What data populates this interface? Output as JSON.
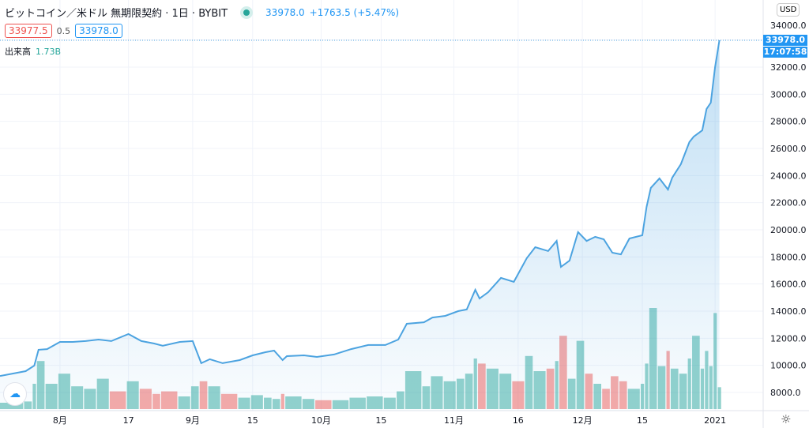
{
  "header": {
    "title": "ビットコイン／米ドル 無期限契約 · 1日 · BYBIT",
    "last": "33978.0",
    "change": "+1763.5 (+5.47%)",
    "bid": "33977.5",
    "spread": "0.5",
    "ask": "33978.0",
    "volume_label": "出来高",
    "volume_value": "1.73B",
    "currency": "USD",
    "price_tag": "33978.0",
    "countdown": "17:07:58"
  },
  "colors": {
    "line": "#4ca3e0",
    "up": "#26a69a",
    "down": "#ef5350"
  },
  "chart_data": {
    "type": "line",
    "ylim": [
      7000,
      34500
    ],
    "y_ticks": [
      8000,
      10000,
      12000,
      14000,
      16000,
      18000,
      20000,
      22000,
      24000,
      26000,
      28000,
      30000,
      32000,
      34000
    ],
    "y_tick_labels": [
      "8000.0",
      "10000.0",
      "12000.0",
      "14000.0",
      "16000.0",
      "18000.0",
      "20000.0",
      "22000.0",
      "24000.0",
      "26000.0",
      "28000.0",
      "30000.0",
      "32000.0",
      "34000.0"
    ],
    "x_ticks": [
      {
        "date": "2020-08-01",
        "label": "8月"
      },
      {
        "date": "2020-08-17",
        "label": "17"
      },
      {
        "date": "2020-09-01",
        "label": "9月"
      },
      {
        "date": "2020-09-15",
        "label": "15"
      },
      {
        "date": "2020-10-01",
        "label": "10月"
      },
      {
        "date": "2020-10-15",
        "label": "15"
      },
      {
        "date": "2020-11-01",
        "label": "11月"
      },
      {
        "date": "2020-11-16",
        "label": "16"
      },
      {
        "date": "2020-12-01",
        "label": "12月"
      },
      {
        "date": "2020-12-15",
        "label": "15"
      },
      {
        "date": "2021-01-01",
        "label": "2021"
      }
    ],
    "series": [
      [
        "2020-07-18",
        9220,
        0.5
      ],
      [
        "2020-07-24",
        9570,
        0.6
      ],
      [
        "2020-07-26",
        9980,
        2.0
      ],
      [
        "2020-07-27",
        11150,
        3.8
      ],
      [
        "2020-07-29",
        11200,
        2.0
      ],
      [
        "2020-08-01",
        11730,
        2.8
      ],
      [
        "2020-08-04",
        11730,
        1.8
      ],
      [
        "2020-08-07",
        11790,
        1.6
      ],
      [
        "2020-08-10",
        11900,
        2.4
      ],
      [
        "2020-08-13",
        11790,
        1.4
      ],
      [
        "2020-08-17",
        12310,
        2.2
      ],
      [
        "2020-08-20",
        11790,
        1.6
      ],
      [
        "2020-08-23",
        11610,
        1.2
      ],
      [
        "2020-08-25",
        11440,
        1.4
      ],
      [
        "2020-08-29",
        11730,
        1.0
      ],
      [
        "2020-09-01",
        11790,
        1.8
      ],
      [
        "2020-09-03",
        10160,
        2.2
      ],
      [
        "2020-09-05",
        10450,
        1.8
      ],
      [
        "2020-09-08",
        10160,
        1.2
      ],
      [
        "2020-09-12",
        10390,
        0.9
      ],
      [
        "2020-09-15",
        10740,
        1.1
      ],
      [
        "2020-09-18",
        10970,
        0.9
      ],
      [
        "2020-09-20",
        11090,
        0.8
      ],
      [
        "2020-09-22",
        10390,
        1.2
      ],
      [
        "2020-09-23",
        10680,
        1.0
      ],
      [
        "2020-09-27",
        10740,
        0.8
      ],
      [
        "2020-09-30",
        10620,
        0.7
      ],
      [
        "2020-10-04",
        10800,
        0.7
      ],
      [
        "2020-10-08",
        11200,
        0.9
      ],
      [
        "2020-10-12",
        11500,
        1.0
      ],
      [
        "2020-10-16",
        11500,
        0.9
      ],
      [
        "2020-10-19",
        11900,
        1.4
      ],
      [
        "2020-10-21",
        13070,
        3.0
      ],
      [
        "2020-10-25",
        13180,
        1.8
      ],
      [
        "2020-10-27",
        13530,
        2.6
      ],
      [
        "2020-10-30",
        13650,
        2.2
      ],
      [
        "2020-11-02",
        14000,
        2.4
      ],
      [
        "2020-11-04",
        14120,
        2.8
      ],
      [
        "2020-11-06",
        15570,
        4.0
      ],
      [
        "2020-11-07",
        14930,
        3.6
      ],
      [
        "2020-11-09",
        15400,
        3.2
      ],
      [
        "2020-11-12",
        16450,
        2.8
      ],
      [
        "2020-11-15",
        16160,
        2.2
      ],
      [
        "2020-11-18",
        17900,
        4.2
      ],
      [
        "2020-11-20",
        18720,
        3.0
      ],
      [
        "2020-11-23",
        18430,
        3.2
      ],
      [
        "2020-11-25",
        19180,
        3.8
      ],
      [
        "2020-11-26",
        17260,
        5.8
      ],
      [
        "2020-11-28",
        17730,
        2.4
      ],
      [
        "2020-11-30",
        19830,
        5.4
      ],
      [
        "2020-12-02",
        19180,
        2.8
      ],
      [
        "2020-12-04",
        19480,
        2.0
      ],
      [
        "2020-12-06",
        19300,
        1.6
      ],
      [
        "2020-12-08",
        18310,
        2.6
      ],
      [
        "2020-12-10",
        18190,
        2.2
      ],
      [
        "2020-12-12",
        19360,
        1.6
      ],
      [
        "2020-12-15",
        19590,
        2.0
      ],
      [
        "2020-12-16",
        21690,
        3.6
      ],
      [
        "2020-12-17",
        23090,
        8.0
      ],
      [
        "2020-12-19",
        23790,
        3.4
      ],
      [
        "2020-12-21",
        22970,
        4.6
      ],
      [
        "2020-12-22",
        23850,
        3.2
      ],
      [
        "2020-12-24",
        24840,
        2.8
      ],
      [
        "2020-12-26",
        26470,
        4.0
      ],
      [
        "2020-12-27",
        26870,
        5.8
      ],
      [
        "2020-12-29",
        27340,
        3.2
      ],
      [
        "2020-12-30",
        28910,
        4.6
      ],
      [
        "2020-12-31",
        29380,
        3.4
      ],
      [
        "2021-01-01",
        32000,
        7.6
      ],
      [
        "2021-01-02",
        33978,
        1.73
      ]
    ]
  }
}
